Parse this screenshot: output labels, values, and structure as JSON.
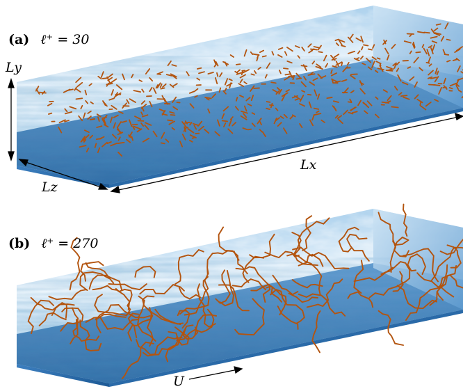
{
  "panels": [
    {
      "id": "a",
      "tag": "(a)",
      "equation": "ℓ⁺ = 30"
    },
    {
      "id": "b",
      "tag": "(b)",
      "equation": "ℓ⁺ = 270"
    }
  ],
  "labels": {
    "ly": "Ly",
    "lx": "Lx",
    "lz": "Lz",
    "u": "U"
  },
  "colors": {
    "fiber": "#b3540f",
    "field_light": "#dcecf7",
    "field_mid": "#6aa7d6",
    "field_dark": "#1f5f9c",
    "arrow": "#000000"
  }
}
